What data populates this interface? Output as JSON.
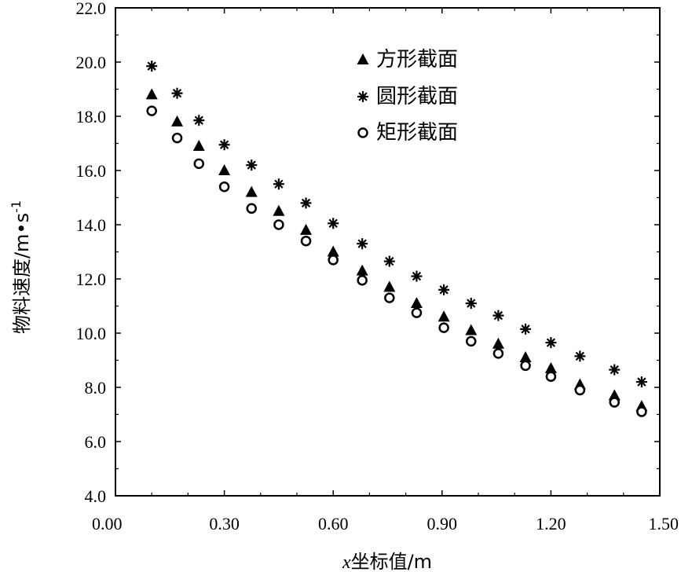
{
  "chart_data": {
    "type": "scatter",
    "xlabel_prefix": "x",
    "xlabel": "坐标值/m",
    "ylabel": "物料速度/m•s",
    "ylabel_superscript": "-1",
    "xlim": [
      0,
      1.5
    ],
    "ylim": [
      4.0,
      22.0
    ],
    "x_ticks": [
      0,
      0.3,
      0.6,
      0.9,
      1.2,
      1.5
    ],
    "x_tick_labels": [
      "0.00",
      "0.30",
      "0.60",
      "0.90",
      "1.20",
      "1.50"
    ],
    "y_ticks": [
      4,
      6,
      8,
      10,
      12,
      14,
      16,
      18,
      20,
      22
    ],
    "y_tick_labels": [
      "4.0",
      "6.0",
      "8.0",
      "10.0",
      "12.0",
      "14.0",
      "16.0",
      "18.0",
      "20.0",
      "22.0"
    ],
    "grid": false,
    "legend_position": "top-right",
    "x": [
      0.1,
      0.17,
      0.23,
      0.3,
      0.375,
      0.45,
      0.525,
      0.6,
      0.68,
      0.755,
      0.83,
      0.905,
      0.98,
      1.055,
      1.13,
      1.2,
      1.28,
      1.375,
      1.45
    ],
    "series": [
      {
        "name": "方形截面",
        "marker": "triangle",
        "values": [
          18.8,
          17.8,
          16.9,
          16.0,
          15.2,
          14.5,
          13.8,
          13.0,
          12.3,
          11.7,
          11.1,
          10.6,
          10.1,
          9.6,
          9.1,
          8.7,
          8.1,
          7.7,
          7.3
        ]
      },
      {
        "name": "圆形截面",
        "marker": "asterisk",
        "values": [
          19.85,
          18.85,
          17.85,
          16.95,
          16.2,
          15.5,
          14.8,
          14.05,
          13.3,
          12.65,
          12.1,
          11.6,
          11.1,
          10.65,
          10.15,
          9.65,
          9.15,
          8.65,
          8.2
        ]
      },
      {
        "name": "矩形截面",
        "marker": "circle",
        "values": [
          18.2,
          17.2,
          16.25,
          15.4,
          14.6,
          14.0,
          13.4,
          12.7,
          11.95,
          11.3,
          10.75,
          10.2,
          9.7,
          9.25,
          8.8,
          8.4,
          7.9,
          7.45,
          7.1
        ]
      }
    ]
  }
}
